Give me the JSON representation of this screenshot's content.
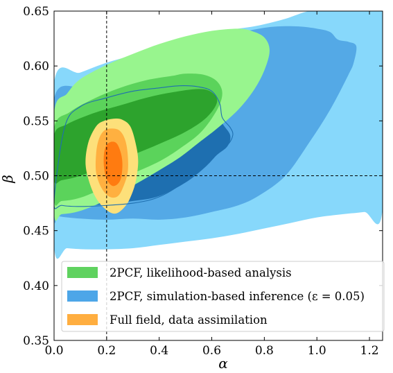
{
  "chart_data": {
    "type": "contour",
    "xlabel": "α",
    "ylabel": "β",
    "xlim": [
      0.0,
      1.25
    ],
    "ylim": [
      0.35,
      0.65
    ],
    "x_ticks": [
      0.0,
      0.2,
      0.4,
      0.6,
      0.8,
      1.0,
      1.2
    ],
    "x_tick_labels": [
      "0.0",
      "0.2",
      "0.4",
      "0.6",
      "0.8",
      "1.0",
      "1.2"
    ],
    "y_ticks": [
      0.35,
      0.4,
      0.45,
      0.5,
      0.55,
      0.6,
      0.65
    ],
    "y_tick_labels": [
      "0.35",
      "0.40",
      "0.45",
      "0.50",
      "0.55",
      "0.60",
      "0.65"
    ],
    "reference_lines": {
      "x": 0.2,
      "y": 0.5,
      "style": "dashed"
    },
    "legend": {
      "position": "lower-left",
      "entries": [
        {
          "label": "2PCF, likelihood-based analysis",
          "color": "#5fd25f"
        },
        {
          "label": "2PCF, simulation-based inference (ε = 0.05)",
          "color": "#4da6e8"
        },
        {
          "label": "Full field, data assimilation",
          "color": "#ffae40"
        }
      ]
    },
    "series": [
      {
        "name": "2PCF, simulation-based inference (ε = 0.05)",
        "levels": [
          {
            "level": "outer",
            "color": "#87d8fb",
            "points": [
              [
                0.0,
                0.585
              ],
              [
                0.1,
                0.594
              ],
              [
                0.2,
                0.603
              ],
              [
                0.3,
                0.61
              ],
              [
                0.4,
                0.618
              ],
              [
                0.5,
                0.624
              ],
              [
                0.6,
                0.63
              ],
              [
                0.7,
                0.634
              ],
              [
                0.78,
                0.637
              ],
              [
                0.88,
                0.643
              ],
              [
                0.97,
                0.65
              ],
              [
                1.05,
                0.65
              ],
              [
                1.15,
                0.65
              ],
              [
                1.25,
                0.65
              ],
              [
                1.25,
                0.47
              ],
              [
                1.18,
                0.467
              ],
              [
                1.1,
                0.465
              ],
              [
                1.0,
                0.462
              ],
              [
                0.9,
                0.457
              ],
              [
                0.8,
                0.452
              ],
              [
                0.7,
                0.447
              ],
              [
                0.6,
                0.443
              ],
              [
                0.5,
                0.44
              ],
              [
                0.4,
                0.437
              ],
              [
                0.3,
                0.434
              ],
              [
                0.2,
                0.433
              ],
              [
                0.12,
                0.433
              ],
              [
                0.05,
                0.434
              ],
              [
                0.0,
                0.436
              ]
            ]
          },
          {
            "level": "middle",
            "color": "#54a9e6",
            "points": [
              [
                0.0,
                0.57
              ],
              [
                0.1,
                0.582
              ],
              [
                0.2,
                0.592
              ],
              [
                0.3,
                0.601
              ],
              [
                0.4,
                0.609
              ],
              [
                0.5,
                0.616
              ],
              [
                0.6,
                0.623
              ],
              [
                0.7,
                0.63
              ],
              [
                0.78,
                0.634
              ],
              [
                0.85,
                0.636
              ],
              [
                0.93,
                0.636
              ],
              [
                1.0,
                0.634
              ],
              [
                1.05,
                0.631
              ],
              [
                1.08,
                0.624
              ],
              [
                1.12,
                0.622
              ],
              [
                1.15,
                0.618
              ],
              [
                1.14,
                0.603
              ],
              [
                1.12,
                0.592
              ],
              [
                1.05,
                0.56
              ],
              [
                0.97,
                0.53
              ],
              [
                0.88,
                0.5
              ],
              [
                0.78,
                0.482
              ],
              [
                0.7,
                0.473
              ],
              [
                0.6,
                0.467
              ],
              [
                0.5,
                0.462
              ],
              [
                0.4,
                0.46
              ],
              [
                0.3,
                0.461
              ],
              [
                0.2,
                0.46
              ],
              [
                0.1,
                0.461
              ],
              [
                0.02,
                0.463
              ],
              [
                0.0,
                0.465
              ]
            ]
          },
          {
            "level": "inner",
            "color": "#1e6fb0",
            "points": [
              [
                0.0,
                0.55
              ],
              [
                0.1,
                0.563
              ],
              [
                0.2,
                0.57
              ],
              [
                0.3,
                0.575
              ],
              [
                0.4,
                0.58
              ],
              [
                0.5,
                0.582
              ],
              [
                0.55,
                0.581
              ],
              [
                0.6,
                0.576
              ],
              [
                0.62,
                0.568
              ],
              [
                0.63,
                0.558
              ],
              [
                0.64,
                0.548
              ],
              [
                0.67,
                0.537
              ],
              [
                0.66,
                0.527
              ],
              [
                0.62,
                0.519
              ],
              [
                0.58,
                0.509
              ],
              [
                0.52,
                0.497
              ],
              [
                0.45,
                0.487
              ],
              [
                0.38,
                0.48
              ],
              [
                0.3,
                0.477
              ],
              [
                0.2,
                0.474
              ],
              [
                0.1,
                0.473
              ],
              [
                0.02,
                0.474
              ],
              [
                0.0,
                0.476
              ]
            ]
          }
        ]
      },
      {
        "name": "2PCF, likelihood-based analysis",
        "levels": [
          {
            "level": "outer",
            "color": "#98f58e",
            "points": [
              [
                0.0,
                0.557
              ],
              [
                0.05,
                0.575
              ],
              [
                0.1,
                0.588
              ],
              [
                0.2,
                0.601
              ],
              [
                0.3,
                0.611
              ],
              [
                0.4,
                0.62
              ],
              [
                0.5,
                0.627
              ],
              [
                0.6,
                0.632
              ],
              [
                0.7,
                0.634
              ],
              [
                0.75,
                0.632
              ],
              [
                0.8,
                0.626
              ],
              [
                0.82,
                0.614
              ],
              [
                0.8,
                0.596
              ],
              [
                0.76,
                0.578
              ],
              [
                0.7,
                0.56
              ],
              [
                0.62,
                0.543
              ],
              [
                0.55,
                0.53
              ],
              [
                0.48,
                0.517
              ],
              [
                0.4,
                0.505
              ],
              [
                0.3,
                0.491
              ],
              [
                0.2,
                0.478
              ],
              [
                0.1,
                0.468
              ],
              [
                0.03,
                0.465
              ],
              [
                0.0,
                0.466
              ]
            ]
          },
          {
            "level": "middle",
            "color": "#5bd35b",
            "points": [
              [
                0.0,
                0.543
              ],
              [
                0.06,
                0.558
              ],
              [
                0.15,
                0.57
              ],
              [
                0.25,
                0.58
              ],
              [
                0.35,
                0.587
              ],
              [
                0.45,
                0.591
              ],
              [
                0.5,
                0.593
              ],
              [
                0.57,
                0.592
              ],
              [
                0.62,
                0.586
              ],
              [
                0.64,
                0.575
              ],
              [
                0.62,
                0.56
              ],
              [
                0.56,
                0.54
              ],
              [
                0.48,
                0.525
              ],
              [
                0.4,
                0.513
              ],
              [
                0.3,
                0.502
              ],
              [
                0.2,
                0.49
              ],
              [
                0.1,
                0.48
              ],
              [
                0.03,
                0.477
              ],
              [
                0.0,
                0.478
              ]
            ]
          },
          {
            "level": "inner",
            "color": "#2da32d",
            "points": [
              [
                0.0,
                0.537
              ],
              [
                0.05,
                0.547
              ],
              [
                0.15,
                0.557
              ],
              [
                0.25,
                0.564
              ],
              [
                0.35,
                0.571
              ],
              [
                0.45,
                0.576
              ],
              [
                0.55,
                0.579
              ],
              [
                0.6,
                0.576
              ],
              [
                0.62,
                0.567
              ],
              [
                0.58,
                0.553
              ],
              [
                0.5,
                0.54
              ],
              [
                0.4,
                0.529
              ],
              [
                0.3,
                0.519
              ],
              [
                0.2,
                0.509
              ],
              [
                0.1,
                0.5
              ],
              [
                0.03,
                0.496
              ],
              [
                0.0,
                0.496
              ]
            ]
          }
        ]
      },
      {
        "name": "Full field, data assimilation",
        "levels": [
          {
            "level": "outer",
            "color": "#fde07a",
            "points": [
              [
                0.23,
                0.552
              ],
              [
                0.26,
                0.551
              ],
              [
                0.29,
                0.545
              ],
              [
                0.31,
                0.53
              ],
              [
                0.32,
                0.513
              ],
              [
                0.31,
                0.494
              ],
              [
                0.29,
                0.48
              ],
              [
                0.27,
                0.472
              ],
              [
                0.24,
                0.466
              ],
              [
                0.21,
                0.467
              ],
              [
                0.17,
                0.476
              ],
              [
                0.14,
                0.49
              ],
              [
                0.12,
                0.51
              ],
              [
                0.13,
                0.53
              ],
              [
                0.16,
                0.545
              ],
              [
                0.19,
                0.55
              ]
            ]
          },
          {
            "level": "middle",
            "color": "#ffb040",
            "points": [
              [
                0.22,
                0.543
              ],
              [
                0.25,
                0.541
              ],
              [
                0.27,
                0.533
              ],
              [
                0.28,
                0.52
              ],
              [
                0.28,
                0.503
              ],
              [
                0.26,
                0.488
              ],
              [
                0.24,
                0.481
              ],
              [
                0.21,
                0.481
              ],
              [
                0.18,
                0.489
              ],
              [
                0.16,
                0.503
              ],
              [
                0.16,
                0.52
              ],
              [
                0.17,
                0.533
              ],
              [
                0.19,
                0.541
              ]
            ]
          },
          {
            "level": "inner",
            "color": "#ff7b10",
            "points": [
              [
                0.22,
                0.531
              ],
              [
                0.24,
                0.529
              ],
              [
                0.255,
                0.52
              ],
              [
                0.26,
                0.51
              ],
              [
                0.255,
                0.498
              ],
              [
                0.24,
                0.492
              ],
              [
                0.22,
                0.491
              ],
              [
                0.2,
                0.497
              ],
              [
                0.19,
                0.508
              ],
              [
                0.19,
                0.52
              ],
              [
                0.2,
                0.528
              ]
            ]
          }
        ]
      }
    ],
    "unlabeled_outline": {
      "color": "#1e6fb0",
      "points": [
        [
          0.0,
          0.476
        ],
        [
          0.04,
          0.544
        ],
        [
          0.1,
          0.563
        ],
        [
          0.2,
          0.571
        ],
        [
          0.3,
          0.577
        ],
        [
          0.4,
          0.58
        ],
        [
          0.48,
          0.582
        ],
        [
          0.55,
          0.581
        ],
        [
          0.6,
          0.577
        ],
        [
          0.63,
          0.566
        ],
        [
          0.64,
          0.553
        ],
        [
          0.67,
          0.544
        ],
        [
          0.68,
          0.537
        ],
        [
          0.66,
          0.528
        ],
        [
          0.6,
          0.516
        ],
        [
          0.52,
          0.5
        ],
        [
          0.45,
          0.487
        ],
        [
          0.38,
          0.479
        ],
        [
          0.3,
          0.475
        ],
        [
          0.2,
          0.473
        ],
        [
          0.1,
          0.472
        ],
        [
          0.03,
          0.473
        ]
      ]
    }
  }
}
